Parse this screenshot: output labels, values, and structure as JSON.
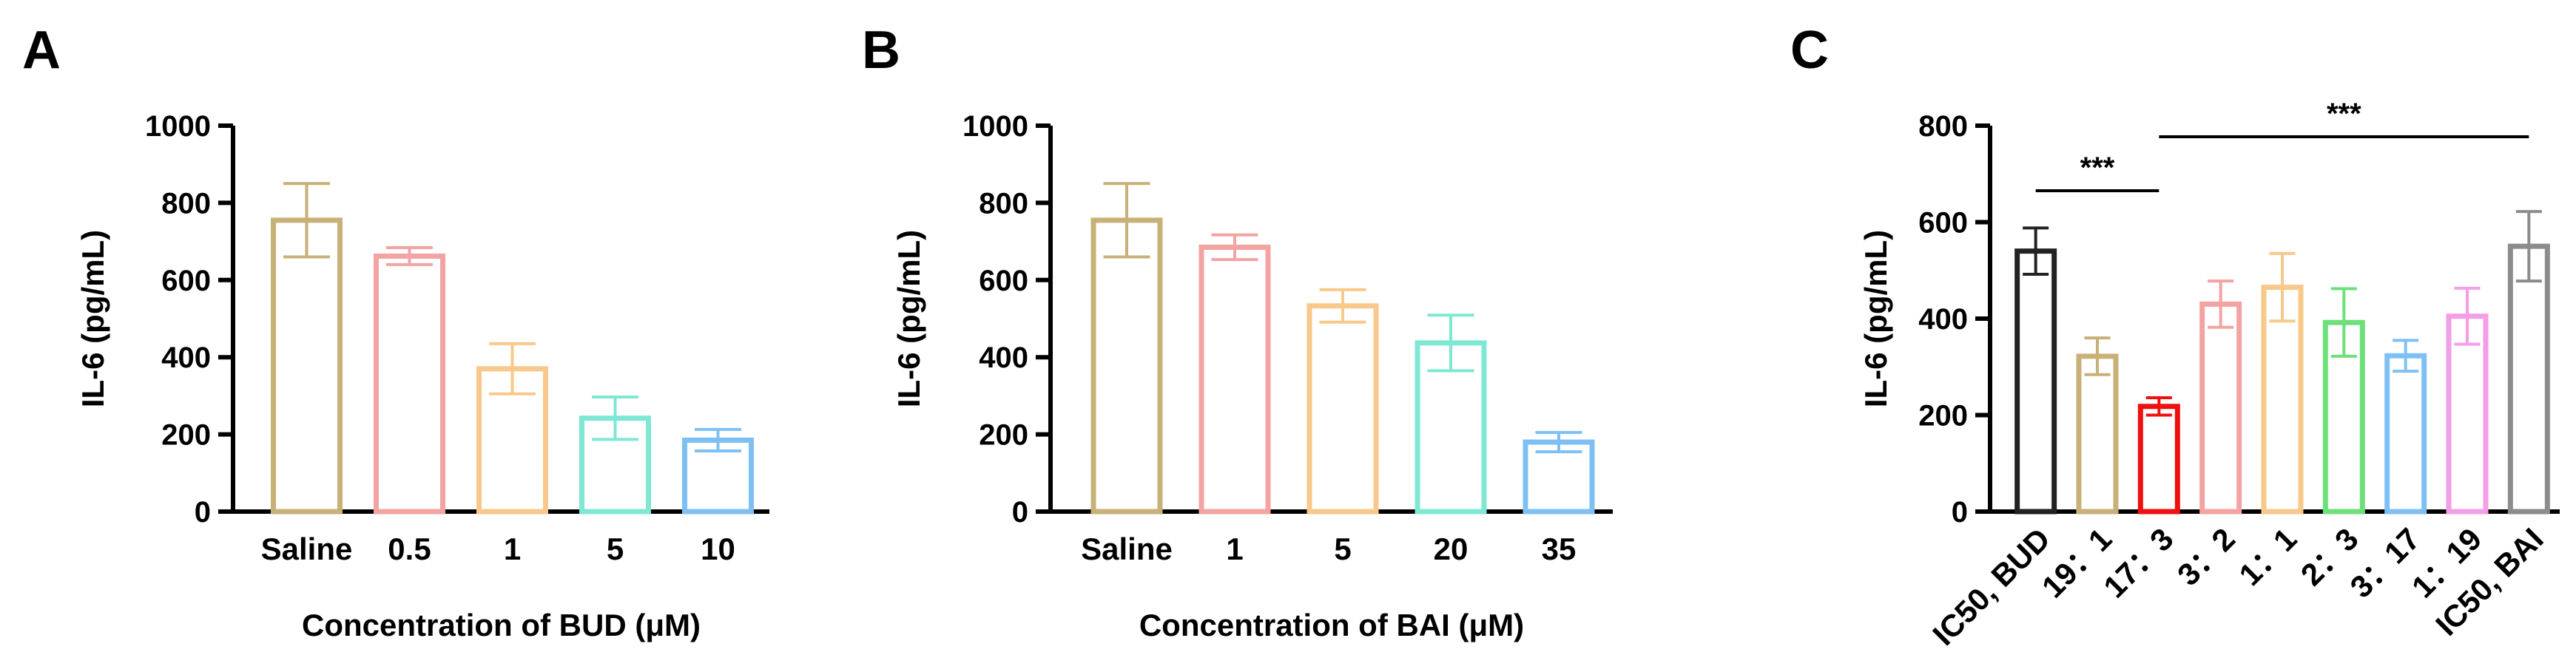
{
  "chart_data": [
    {
      "panel": "A",
      "type": "bar",
      "ylabel": "IL-6 (pg/mL)",
      "xlabel": "Concentration of BUD (μM)",
      "ylim": [
        0,
        1000
      ],
      "yticks": [
        "0",
        "200",
        "400",
        "600",
        "800",
        "1000"
      ],
      "categories": [
        "Saline",
        "0.5",
        "1",
        "5",
        "10"
      ],
      "values": [
        755,
        662,
        370,
        242,
        185
      ],
      "errors": [
        95,
        22,
        65,
        55,
        28
      ],
      "colors": [
        "#c8b176",
        "#f4a3a3",
        "#f8c98a",
        "#7ee8d4",
        "#7ec0f4"
      ],
      "grid": false
    },
    {
      "panel": "B",
      "type": "bar",
      "ylabel": "IL-6 (pg/mL)",
      "xlabel": "Concentration of BAI (μM)",
      "ylim": [
        0,
        1000
      ],
      "yticks": [
        "0",
        "200",
        "400",
        "600",
        "800",
        "1000"
      ],
      "categories": [
        "Saline",
        "1",
        "5",
        "20",
        "35"
      ],
      "values": [
        755,
        685,
        533,
        437,
        180
      ],
      "errors": [
        95,
        32,
        42,
        72,
        25
      ],
      "colors": [
        "#c8b176",
        "#f4a3a3",
        "#f8c98a",
        "#7ee8d4",
        "#7ec0f4"
      ],
      "grid": false
    },
    {
      "panel": "C",
      "type": "bar",
      "ylabel": "IL-6 (pg/mL)",
      "xlabel": "",
      "ylim": [
        0,
        800
      ],
      "yticks": [
        "0",
        "200",
        "400",
        "600",
        "800"
      ],
      "categories": [
        "IC50, BUD",
        "19：1",
        "17：3",
        "3：2",
        "1：1",
        "2：3",
        "3：17",
        "1：19",
        "IC50, BAI"
      ],
      "values": [
        540,
        322,
        218,
        430,
        465,
        392,
        323,
        405,
        550
      ],
      "errors": [
        48,
        38,
        18,
        48,
        70,
        70,
        32,
        58,
        72
      ],
      "colors": [
        "#222222",
        "#c8b176",
        "#f01010",
        "#f4a3a3",
        "#f8c98a",
        "#6ee07a",
        "#7ec0f4",
        "#f49ee8",
        "#8c8c8c"
      ],
      "significance": [
        {
          "from": 0,
          "to": 2,
          "label": "***"
        },
        {
          "from": 2,
          "to": 8,
          "label": "***"
        }
      ],
      "grid": false
    }
  ]
}
